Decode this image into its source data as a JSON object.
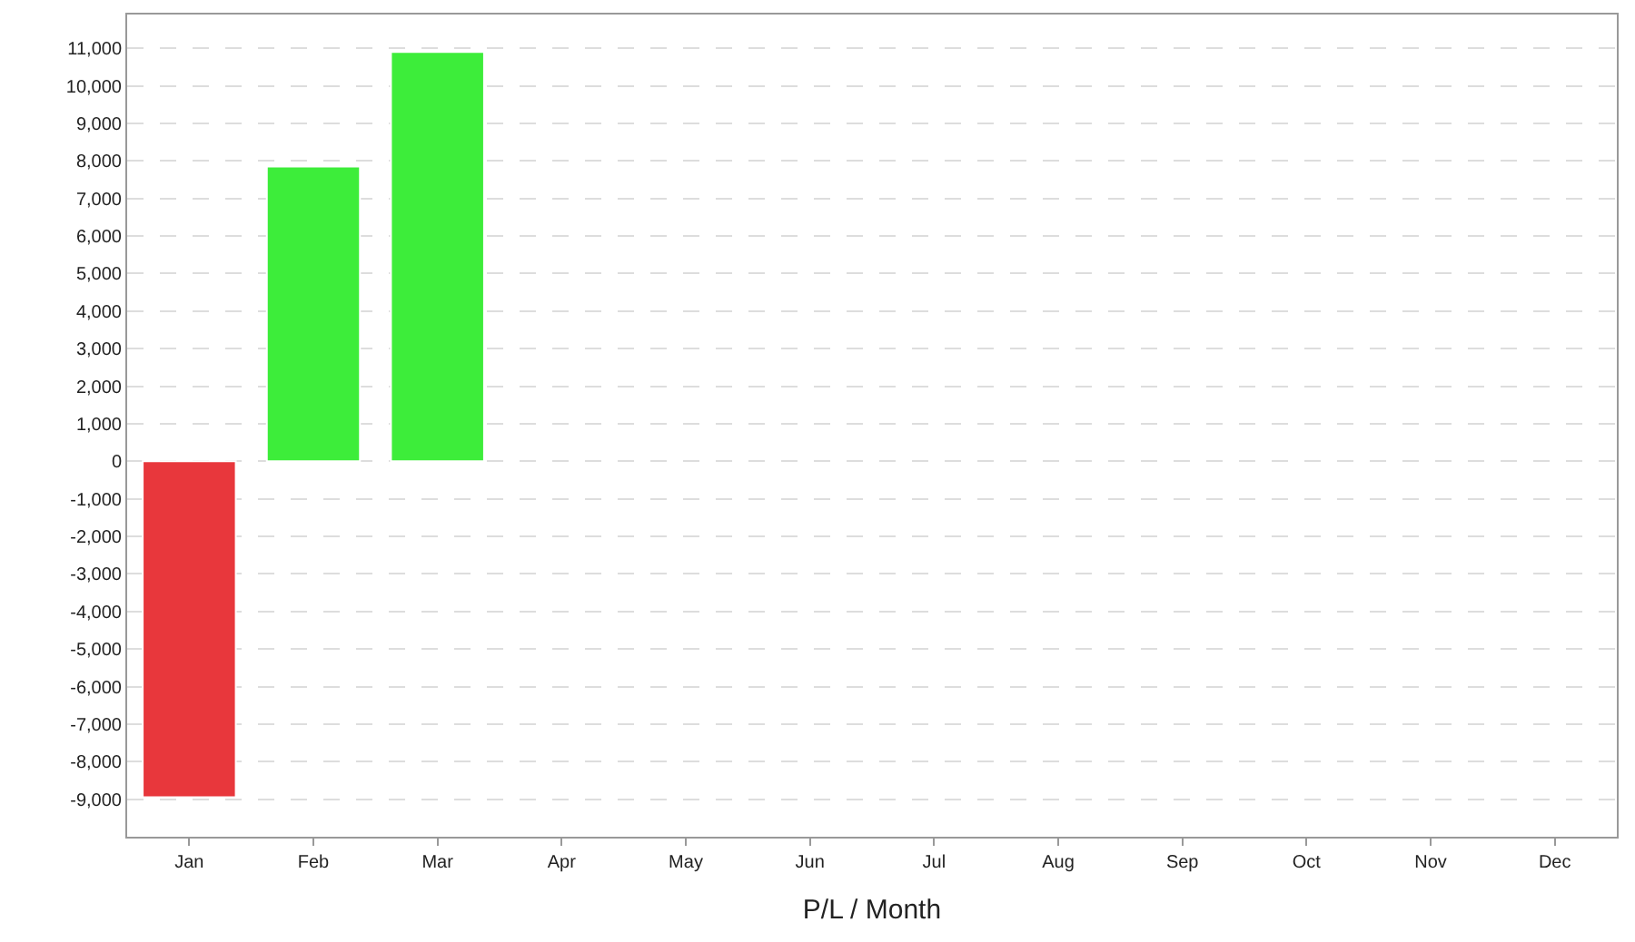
{
  "chart_data": {
    "type": "bar",
    "xlabel": "P/L / Month",
    "categories": [
      "Jan",
      "Feb",
      "Mar",
      "Apr",
      "May",
      "Jun",
      "Jul",
      "Aug",
      "Sep",
      "Oct",
      "Nov",
      "Dec"
    ],
    "values": [
      -8950,
      7850,
      10900,
      null,
      null,
      null,
      null,
      null,
      null,
      null,
      null,
      null
    ],
    "colors": [
      "#e8373c",
      "#3ded3a",
      "#3ded3a",
      "#3ded3a",
      "#3ded3a",
      "#3ded3a",
      "#3ded3a",
      "#3ded3a",
      "#3ded3a",
      "#3ded3a",
      "#3ded3a",
      "#3ded3a"
    ],
    "ylim": [
      -10000,
      11900
    ],
    "yticks": [
      {
        "value": -9000,
        "label": "-9,000"
      },
      {
        "value": -8000,
        "label": "-8,000"
      },
      {
        "value": -7000,
        "label": "-7,000"
      },
      {
        "value": -6000,
        "label": "-6,000"
      },
      {
        "value": -5000,
        "label": "-5,000"
      },
      {
        "value": -4000,
        "label": "-4,000"
      },
      {
        "value": -3000,
        "label": "-3,000"
      },
      {
        "value": -2000,
        "label": "-2,000"
      },
      {
        "value": -1000,
        "label": "-1,000"
      },
      0,
      {
        "value": 1000,
        "label": "1,000"
      },
      {
        "value": 2000,
        "label": "2,000"
      },
      {
        "value": 3000,
        "label": "3,000"
      },
      {
        "value": 4000,
        "label": "4,000"
      },
      {
        "value": 5000,
        "label": "5,000"
      },
      {
        "value": 6000,
        "label": "6,000"
      },
      {
        "value": 7000,
        "label": "7,000"
      },
      {
        "value": 8000,
        "label": "8,000"
      },
      {
        "value": 9000,
        "label": "9,000"
      },
      {
        "value": 10000,
        "label": "10,000"
      },
      {
        "value": 11000,
        "label": "11,000"
      }
    ],
    "grid": "y",
    "legend": false
  }
}
